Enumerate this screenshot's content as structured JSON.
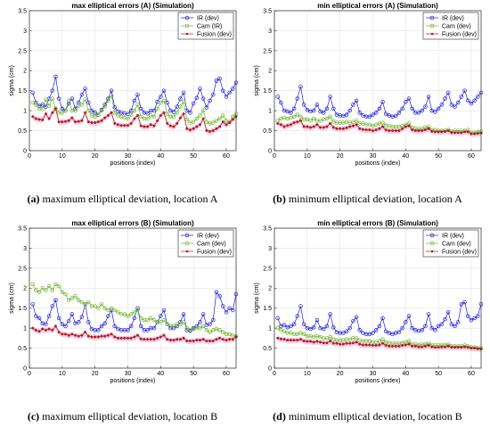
{
  "colors": {
    "ir": "#1f1fd8",
    "cam": "#72b52c",
    "fusion": "#a82020",
    "fusion_band": "#f7c7e4"
  },
  "chart_data": [
    {
      "type": "line",
      "title": "max elliptical errors (A) (Simulation)",
      "caption_tag": "(a)",
      "caption_text": "maximum elliptical deviation, location A",
      "xlabel": "positions (index)",
      "ylabel": "sigma (cm)",
      "xlim": [
        0,
        63
      ],
      "ylim": [
        0,
        3.5
      ],
      "xticks": [
        0,
        10,
        20,
        30,
        40,
        50,
        60
      ],
      "yticks": [
        0,
        0.5,
        1,
        1.5,
        2,
        2.5,
        3,
        3.5
      ],
      "grid": true,
      "legend_position": "top-right",
      "series": [
        {
          "name": "IR (dev)",
          "marker": "circle",
          "values": [
            1.45,
            1.2,
            1.12,
            1.15,
            1.1,
            1.3,
            1.5,
            1.85,
            1.3,
            1.05,
            1.0,
            1.18,
            1.3,
            1.05,
            1.2,
            1.4,
            1.55,
            1.2,
            1.0,
            0.95,
            0.9,
            1.02,
            1.15,
            1.3,
            1.5,
            1.08,
            0.98,
            0.95,
            0.93,
            0.92,
            1.0,
            1.25,
            1.4,
            1.05,
            0.95,
            0.93,
            1.0,
            1.0,
            1.22,
            1.35,
            1.5,
            1.2,
            1.0,
            0.97,
            1.1,
            1.3,
            1.45,
            1.0,
            0.95,
            1.18,
            1.32,
            1.55,
            1.3,
            1.08,
            1.25,
            1.4,
            1.75,
            1.8,
            1.5,
            1.35,
            1.45,
            1.55,
            1.7
          ]
        },
        {
          "name": "Cam (IR)",
          "marker": "circle",
          "values": [
            1.2,
            1.15,
            1.05,
            1.05,
            1.28,
            1.12,
            1.3,
            1.05,
            0.95,
            0.95,
            1.0,
            1.25,
            1.0,
            1.0,
            1.12,
            1.15,
            1.28,
            1.0,
            0.88,
            0.85,
            0.9,
            1.0,
            1.1,
            1.25,
            1.38,
            0.95,
            0.88,
            0.85,
            0.82,
            0.8,
            0.9,
            1.0,
            1.15,
            0.85,
            0.8,
            0.8,
            0.88,
            0.85,
            1.05,
            1.2,
            1.25,
            0.92,
            0.85,
            0.85,
            0.95,
            1.1,
            1.22,
            0.78,
            0.7,
            0.72,
            0.8,
            0.88,
            1.0,
            0.72,
            0.68,
            0.7,
            0.75,
            0.8,
            0.88,
            0.75,
            0.72,
            0.85,
            0.92
          ]
        },
        {
          "name": "Fusion (dev)",
          "marker": "dot",
          "values": [
            0.85,
            0.8,
            0.78,
            0.77,
            0.92,
            0.8,
            0.95,
            1.05,
            0.72,
            0.72,
            0.73,
            0.75,
            0.82,
            0.72,
            0.73,
            0.75,
            0.95,
            0.72,
            0.7,
            0.7,
            0.72,
            0.75,
            0.82,
            0.88,
            0.95,
            0.68,
            0.65,
            0.63,
            0.63,
            0.63,
            0.68,
            0.8,
            0.88,
            0.62,
            0.6,
            0.6,
            0.65,
            0.62,
            0.75,
            0.88,
            0.95,
            0.68,
            0.62,
            0.6,
            0.68,
            0.82,
            0.92,
            0.55,
            0.52,
            0.55,
            0.6,
            0.65,
            0.8,
            0.5,
            0.48,
            0.5,
            0.55,
            0.6,
            0.72,
            0.65,
            0.7,
            0.78,
            0.85
          ]
        }
      ]
    },
    {
      "type": "line",
      "title": "min elliptical errors (A) (Simulation)",
      "caption_tag": "(b)",
      "caption_text": "minimum elliptical deviation, location A",
      "xlabel": "positions (index)",
      "ylabel": "sigma (cm)",
      "xlim": [
        0,
        63
      ],
      "ylim": [
        0,
        3.5
      ],
      "xticks": [
        0,
        10,
        20,
        30,
        40,
        50,
        60
      ],
      "yticks": [
        0,
        0.5,
        1,
        1.5,
        2,
        2.5,
        3,
        3.5
      ],
      "grid": true,
      "legend_position": "top-right",
      "series": [
        {
          "name": "IR (dev)",
          "marker": "circle",
          "values": [
            1.35,
            1.2,
            1.0,
            0.98,
            0.95,
            1.05,
            1.3,
            1.6,
            1.15,
            1.02,
            0.98,
            1.0,
            1.15,
            0.98,
            0.95,
            1.05,
            1.35,
            1.05,
            0.9,
            0.88,
            0.87,
            0.9,
            1.0,
            1.15,
            1.25,
            0.95,
            0.88,
            0.85,
            0.85,
            0.9,
            0.95,
            1.05,
            1.22,
            0.92,
            0.88,
            0.85,
            0.87,
            0.95,
            1.05,
            1.22,
            1.3,
            1.05,
            0.95,
            0.95,
            1.0,
            1.1,
            1.35,
            1.0,
            0.97,
            1.05,
            1.15,
            1.3,
            1.45,
            1.15,
            1.1,
            1.2,
            1.35,
            1.5,
            1.25,
            1.18,
            1.25,
            1.35,
            1.45
          ]
        },
        {
          "name": "Cam (dev)",
          "marker": "circle",
          "values": [
            0.75,
            0.8,
            0.82,
            0.8,
            0.82,
            0.85,
            0.9,
            0.85,
            0.78,
            0.78,
            0.75,
            0.8,
            0.75,
            0.75,
            0.78,
            0.8,
            0.85,
            0.73,
            0.7,
            0.7,
            0.7,
            0.72,
            0.7,
            0.72,
            0.75,
            0.68,
            0.68,
            0.65,
            0.65,
            0.62,
            0.65,
            0.68,
            0.7,
            0.63,
            0.62,
            0.6,
            0.6,
            0.6,
            0.62,
            0.65,
            0.68,
            0.58,
            0.55,
            0.55,
            0.55,
            0.58,
            0.6,
            0.52,
            0.52,
            0.5,
            0.5,
            0.5,
            0.52,
            0.48,
            0.5,
            0.5,
            0.5,
            0.5,
            0.52,
            0.45,
            0.45,
            0.47,
            0.48
          ]
        },
        {
          "name": "Fusion (dev)",
          "marker": "dot",
          "values": [
            0.68,
            0.65,
            0.6,
            0.63,
            0.65,
            0.7,
            0.72,
            0.75,
            0.6,
            0.6,
            0.58,
            0.6,
            0.65,
            0.58,
            0.58,
            0.6,
            0.68,
            0.58,
            0.55,
            0.55,
            0.55,
            0.57,
            0.6,
            0.62,
            0.65,
            0.55,
            0.53,
            0.52,
            0.52,
            0.5,
            0.52,
            0.55,
            0.6,
            0.52,
            0.5,
            0.5,
            0.5,
            0.5,
            0.55,
            0.6,
            0.62,
            0.52,
            0.5,
            0.5,
            0.5,
            0.52,
            0.55,
            0.48,
            0.47,
            0.47,
            0.47,
            0.48,
            0.5,
            0.45,
            0.45,
            0.45,
            0.45,
            0.47,
            0.47,
            0.42,
            0.42,
            0.43,
            0.44
          ]
        }
      ]
    },
    {
      "type": "line",
      "title": "max elliptical errors (B) (Simulation)",
      "caption_tag": "(c)",
      "caption_text": "maximum elliptical deviation, location B",
      "xlabel": "positions (index)",
      "ylabel": "sigma (cm)",
      "xlim": [
        0,
        63
      ],
      "ylim": [
        0,
        3.5
      ],
      "xticks": [
        0,
        10,
        20,
        30,
        40,
        50,
        60
      ],
      "yticks": [
        0,
        0.5,
        1,
        1.5,
        2,
        2.5,
        3,
        3.5
      ],
      "grid": true,
      "legend_position": "top-right",
      "series": [
        {
          "name": "IR (dev)",
          "marker": "circle",
          "values": [
            1.6,
            1.3,
            1.25,
            1.12,
            1.1,
            1.3,
            1.55,
            1.7,
            1.25,
            1.1,
            1.05,
            1.18,
            1.35,
            1.12,
            1.15,
            1.28,
            1.6,
            1.15,
            0.98,
            0.95,
            0.95,
            1.05,
            1.12,
            1.3,
            1.45,
            1.05,
            0.98,
            0.95,
            0.95,
            0.95,
            1.05,
            1.25,
            1.5,
            1.05,
            0.95,
            0.95,
            1.0,
            1.0,
            1.15,
            1.3,
            1.45,
            1.1,
            1.0,
            1.0,
            1.05,
            1.15,
            1.35,
            0.95,
            0.93,
            1.0,
            1.05,
            1.15,
            1.35,
            1.08,
            1.1,
            1.2,
            1.9,
            1.8,
            1.55,
            1.4,
            1.5,
            1.45,
            1.85
          ]
        },
        {
          "name": "Cam (dev)",
          "marker": "circle",
          "values": [
            2.1,
            1.95,
            1.9,
            2.0,
            1.95,
            2.05,
            1.95,
            2.1,
            2.05,
            1.9,
            1.85,
            1.7,
            1.75,
            1.8,
            1.7,
            1.65,
            1.6,
            1.65,
            1.55,
            1.55,
            1.5,
            1.6,
            1.5,
            1.45,
            1.5,
            1.45,
            1.4,
            1.35,
            1.35,
            1.3,
            1.35,
            1.4,
            1.45,
            1.25,
            1.2,
            1.2,
            1.25,
            1.2,
            1.15,
            1.15,
            1.2,
            1.1,
            1.05,
            1.05,
            1.1,
            1.1,
            1.15,
            1.0,
            0.95,
            0.98,
            1.0,
            1.0,
            1.05,
            0.95,
            0.9,
            0.95,
            0.98,
            0.95,
            0.9,
            0.85,
            0.85,
            0.82,
            0.8
          ]
        },
        {
          "name": "Fusion (dev)",
          "marker": "dot",
          "values": [
            1.0,
            0.95,
            0.92,
            0.98,
            0.95,
            0.98,
            0.95,
            1.05,
            0.9,
            0.85,
            0.85,
            0.82,
            0.85,
            0.82,
            0.8,
            0.82,
            0.9,
            0.8,
            0.78,
            0.78,
            0.78,
            0.8,
            0.8,
            0.82,
            0.85,
            0.78,
            0.75,
            0.75,
            0.75,
            0.75,
            0.75,
            0.78,
            0.82,
            0.73,
            0.72,
            0.72,
            0.72,
            0.72,
            0.75,
            0.78,
            0.82,
            0.72,
            0.7,
            0.7,
            0.72,
            0.72,
            0.75,
            0.68,
            0.68,
            0.68,
            0.7,
            0.7,
            0.72,
            0.68,
            0.68,
            0.68,
            0.72,
            0.75,
            0.72,
            0.7,
            0.72,
            0.72,
            0.78
          ]
        }
      ]
    },
    {
      "type": "line",
      "title": "min elliptical errors (B) (Simulation)",
      "caption_tag": "(d)",
      "caption_text": "minimum elliptical deviation, location B",
      "xlabel": "positions (index)",
      "ylabel": "sigma (cm)",
      "xlim": [
        0,
        63
      ],
      "ylim": [
        0,
        3.5
      ],
      "xticks": [
        0,
        10,
        20,
        30,
        40,
        50,
        60
      ],
      "yticks": [
        0,
        0.5,
        1,
        1.5,
        2,
        2.5,
        3,
        3.5
      ],
      "grid": true,
      "legend_position": "top-right",
      "series": [
        {
          "name": "IR (dev)",
          "marker": "circle",
          "values": [
            1.25,
            1.05,
            1.08,
            1.02,
            1.05,
            1.1,
            1.3,
            1.55,
            1.1,
            1.0,
            0.98,
            1.02,
            1.2,
            1.0,
            0.98,
            1.05,
            1.35,
            1.02,
            0.9,
            0.88,
            0.88,
            0.92,
            1.0,
            1.18,
            1.28,
            0.95,
            0.88,
            0.85,
            0.85,
            0.88,
            0.95,
            1.05,
            1.25,
            0.92,
            0.88,
            0.85,
            0.88,
            0.9,
            1.0,
            1.15,
            1.3,
            1.0,
            0.95,
            0.93,
            0.95,
            1.05,
            1.35,
            1.0,
            0.95,
            1.05,
            1.1,
            1.22,
            1.4,
            1.1,
            1.05,
            1.15,
            1.6,
            1.65,
            1.3,
            1.2,
            1.25,
            1.3,
            1.6
          ]
        },
        {
          "name": "Cam (dev)",
          "marker": "circle",
          "values": [
            1.0,
            0.95,
            0.92,
            0.88,
            0.88,
            0.85,
            0.85,
            0.88,
            0.85,
            0.8,
            0.8,
            0.78,
            0.8,
            0.78,
            0.75,
            0.75,
            0.78,
            0.72,
            0.7,
            0.7,
            0.7,
            0.72,
            0.72,
            0.75,
            0.75,
            0.7,
            0.68,
            0.68,
            0.68,
            0.65,
            0.65,
            0.68,
            0.72,
            0.65,
            0.63,
            0.62,
            0.62,
            0.62,
            0.63,
            0.65,
            0.68,
            0.6,
            0.6,
            0.58,
            0.6,
            0.6,
            0.62,
            0.58,
            0.57,
            0.57,
            0.58,
            0.58,
            0.6,
            0.55,
            0.55,
            0.55,
            0.55,
            0.57,
            0.55,
            0.52,
            0.52,
            0.5,
            0.5
          ]
        },
        {
          "name": "Fusion (dev)",
          "marker": "dot",
          "values": [
            0.75,
            0.73,
            0.72,
            0.7,
            0.7,
            0.7,
            0.7,
            0.72,
            0.68,
            0.67,
            0.67,
            0.65,
            0.67,
            0.65,
            0.63,
            0.63,
            0.68,
            0.62,
            0.62,
            0.6,
            0.6,
            0.62,
            0.62,
            0.63,
            0.65,
            0.6,
            0.58,
            0.58,
            0.58,
            0.57,
            0.57,
            0.58,
            0.62,
            0.57,
            0.55,
            0.55,
            0.55,
            0.55,
            0.57,
            0.58,
            0.6,
            0.55,
            0.55,
            0.53,
            0.53,
            0.55,
            0.57,
            0.53,
            0.52,
            0.52,
            0.53,
            0.53,
            0.55,
            0.52,
            0.52,
            0.52,
            0.52,
            0.53,
            0.52,
            0.5,
            0.5,
            0.49,
            0.48
          ]
        }
      ]
    }
  ]
}
